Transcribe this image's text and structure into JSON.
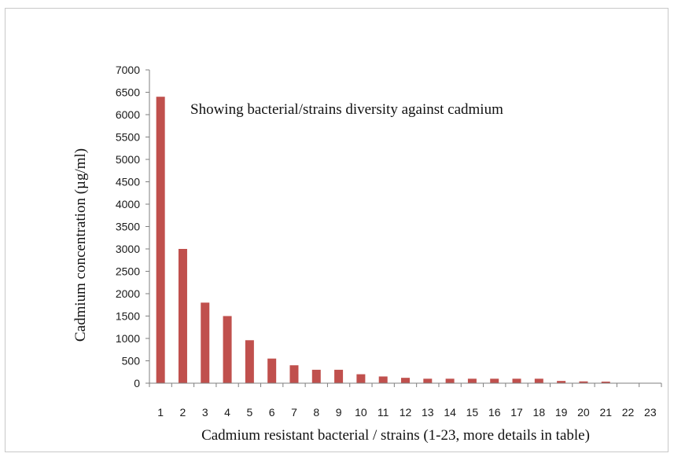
{
  "chart_data": {
    "type": "bar",
    "title": "Showing bacterial/strains diversity against cadmium",
    "xlabel": "Cadmium resistant bacterial / strains (1-23, more details in table)",
    "ylabel": "Cadmium concentration (µg/ml)",
    "ylim": [
      0,
      7000
    ],
    "y_ticks": [
      0,
      500,
      1000,
      1500,
      2000,
      2500,
      3000,
      3500,
      4000,
      4500,
      5000,
      5500,
      6000,
      6500,
      7000
    ],
    "grid": false,
    "legend": "none",
    "bar_color": "#c0504d",
    "categories": [
      "1",
      "2",
      "3",
      "4",
      "5",
      "6",
      "7",
      "8",
      "9",
      "10",
      "11",
      "12",
      "13",
      "14",
      "15",
      "16",
      "17",
      "18",
      "19",
      "20",
      "21",
      "22",
      "23"
    ],
    "values": [
      6400,
      3000,
      1800,
      1500,
      960,
      550,
      400,
      300,
      300,
      200,
      150,
      120,
      100,
      100,
      100,
      100,
      100,
      100,
      50,
      40,
      35,
      0,
      0
    ]
  }
}
